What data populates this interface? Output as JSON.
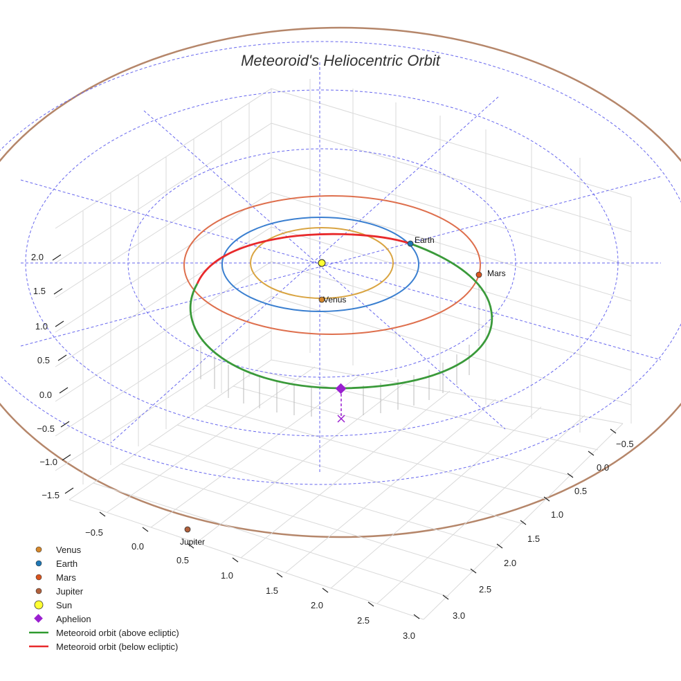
{
  "chart_data": {
    "type": "scatter",
    "title": "Meteoroid's Heliocentric Orbit",
    "axes": {
      "x_ticks": [
        "−0.5",
        "0.0",
        "0.5",
        "1.0",
        "1.5",
        "2.0",
        "2.5",
        "3.0"
      ],
      "y_ticks": [
        "−0.5",
        "0.0",
        "0.5",
        "1.0",
        "1.5",
        "2.0",
        "2.5",
        "3.0"
      ],
      "z_ticks": [
        "2.0",
        "1.5",
        "1.0",
        "0.5",
        "0.0",
        "−0.5",
        "−1.0",
        "−1.5"
      ]
    },
    "planets": [
      {
        "name": "Venus",
        "color": "#d4872b",
        "label": "Venus"
      },
      {
        "name": "Earth",
        "color": "#1f77b4",
        "label": "Earth"
      },
      {
        "name": "Mars",
        "color": "#d9541e",
        "label": "Mars"
      },
      {
        "name": "Jupiter",
        "color": "#b0603c",
        "label": "Jupiter"
      }
    ],
    "orbit_colors": {
      "venus": "#d9a441",
      "earth": "#3a7fd0",
      "mars": "#de6f4d",
      "jupiter": "#b5866a",
      "grid": "#6666ee",
      "meteoroid_above": "#3a9a3a",
      "meteoroid_below": "#e8292b",
      "aphelion": "#9a1fd0",
      "sun": "#ffff33"
    },
    "legend": [
      {
        "label": "Venus",
        "marker": "circle",
        "color": "#d4872b"
      },
      {
        "label": "Earth",
        "marker": "circle",
        "color": "#1f77b4"
      },
      {
        "label": "Mars",
        "marker": "circle",
        "color": "#d9541e"
      },
      {
        "label": "Jupiter",
        "marker": "circle",
        "color": "#b0603c"
      },
      {
        "label": "Sun",
        "marker": "circle-large",
        "color": "#ffff33"
      },
      {
        "label": "Aphelion",
        "marker": "diamond",
        "color": "#9a1fd0"
      },
      {
        "label": "Meteoroid orbit (above ecliptic)",
        "marker": "line",
        "color": "#2e9a2e"
      },
      {
        "label": "Meteoroid orbit (below ecliptic)",
        "marker": "line",
        "color": "#e8292b"
      }
    ],
    "legend_position": "bottom-left"
  }
}
